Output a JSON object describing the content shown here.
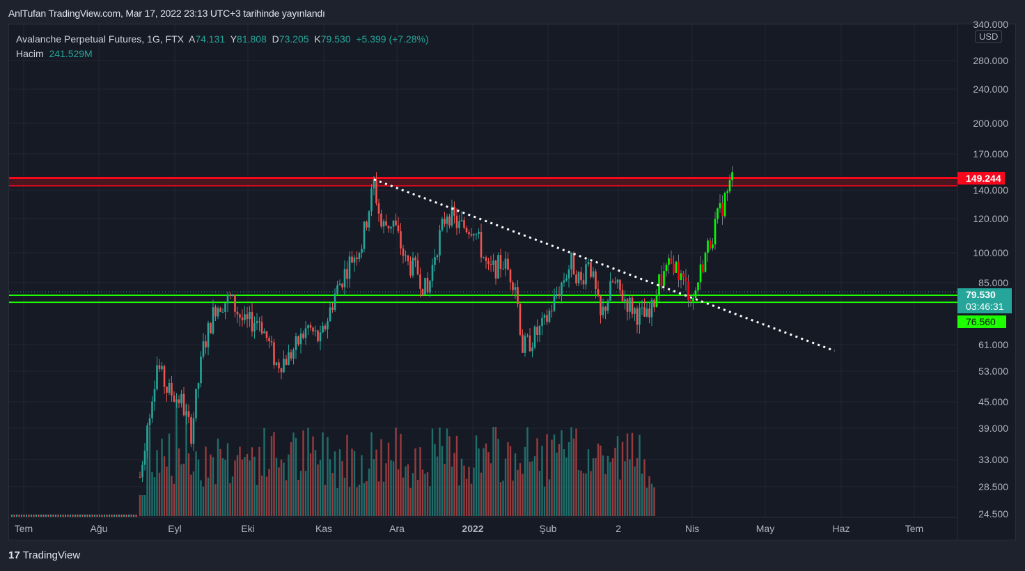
{
  "published": "AnlTufan TradingView.com, Mar 17, 2022 23:13 UTC+3 tarihinde yayınlandı",
  "legend": {
    "symbol": "Avalanche Perpetual Futures, 1G, FTX",
    "o_label": "A",
    "o": "74.131",
    "h_label": "Y",
    "h": "81.808",
    "l_label": "D",
    "l": "73.205",
    "c_label": "K",
    "c": "79.530",
    "change": "+5.399 (+7.28%)",
    "volume_label": "Hacim",
    "volume": "241.529M"
  },
  "currency": "USD",
  "price_ticks": [
    "340.000",
    "280.000",
    "240.000",
    "200.000",
    "170.000",
    "140.000",
    "120.000",
    "100.000",
    "85.000",
    "61.000",
    "53.000",
    "45.000",
    "39.000",
    "33.000",
    "28.500",
    "24.500"
  ],
  "time_labels": [
    "Tem",
    "Ağu",
    "Eyl",
    "Eki",
    "Kas",
    "Ara",
    "2022",
    "Şub",
    "2",
    "Nis",
    "May",
    "Haz",
    "Tem"
  ],
  "tags": {
    "resistance": "149.244",
    "last_price": "79.530",
    "countdown": "03:46:31",
    "support": "76.560"
  },
  "colors": {
    "up": "#26a69a",
    "down": "#ef5350",
    "proj_up": "#00ff00",
    "proj_down": "#ff0015",
    "resistance": "#f7081d",
    "support": "#1eff00"
  },
  "footer": "TradingView",
  "chart_data": {
    "type": "candlestick",
    "scale": "log",
    "price_path": [
      [
        0,
        30
      ],
      [
        3,
        40
      ],
      [
        7,
        55
      ],
      [
        11,
        48
      ],
      [
        17,
        45
      ],
      [
        21,
        38
      ],
      [
        26,
        60
      ],
      [
        31,
        75
      ],
      [
        37,
        78
      ],
      [
        43,
        68
      ],
      [
        49,
        70
      ],
      [
        56,
        55
      ],
      [
        61,
        57
      ],
      [
        69,
        67
      ],
      [
        74,
        62
      ],
      [
        80,
        80
      ],
      [
        86,
        95
      ],
      [
        91,
        105
      ],
      [
        96,
        145
      ],
      [
        99,
        115
      ],
      [
        104,
        118
      ],
      [
        109,
        95
      ],
      [
        114,
        90
      ],
      [
        118,
        80
      ],
      [
        121,
        100
      ],
      [
        126,
        125
      ],
      [
        131,
        115
      ],
      [
        137,
        115
      ],
      [
        143,
        90
      ],
      [
        149,
        95
      ],
      [
        154,
        85
      ],
      [
        157,
        60
      ],
      [
        160,
        62
      ],
      [
        166,
        68
      ],
      [
        171,
        80
      ],
      [
        177,
        95
      ],
      [
        181,
        85
      ],
      [
        184,
        98
      ],
      [
        189,
        70
      ],
      [
        194,
        85
      ],
      [
        199,
        78
      ],
      [
        204,
        72
      ],
      [
        209,
        70
      ],
      [
        213,
        85
      ],
      [
        219,
        95
      ],
      [
        223,
        85
      ],
      [
        227,
        78
      ],
      [
        231,
        95
      ],
      [
        237,
        120
      ],
      [
        243,
        149
      ]
    ],
    "projection_start_day": 212,
    "levels": {
      "resistance": [
        149.244,
        143
      ],
      "support": [
        79.53,
        76.56
      ]
    },
    "trendline": [
      [
        96,
        148
      ],
      [
        285,
        59
      ]
    ]
  }
}
